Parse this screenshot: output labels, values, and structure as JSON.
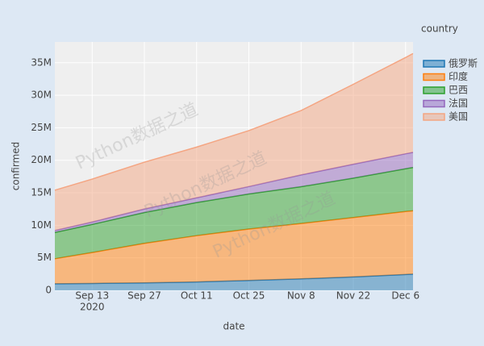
{
  "chart_data": {
    "type": "area",
    "stacked": true,
    "x_label": "date",
    "y_label": "confirmed",
    "legend_title": "country",
    "legend_position": "right",
    "watermark": "Python数据之道",
    "xtick_year": "2020",
    "grid": true,
    "x": [
      "2020-09-03",
      "2020-09-13",
      "2020-09-27",
      "2020-10-11",
      "2020-10-25",
      "2020-11-08",
      "2020-11-22",
      "2020-12-06",
      "2020-12-08"
    ],
    "series": [
      {
        "name": "俄罗斯",
        "color": "#1f77b4",
        "values": [
          1010000,
          1060000,
          1150000,
          1290000,
          1520000,
          1770000,
          2060000,
          2440000,
          2490000
        ]
      },
      {
        "name": "印度",
        "color": "#ff7f0e",
        "values": [
          3850000,
          4750000,
          6070000,
          7120000,
          7910000,
          8510000,
          9140000,
          9680000,
          9740000
        ]
      },
      {
        "name": "巴西",
        "color": "#2ca02c",
        "values": [
          4040000,
          4330000,
          4750000,
          5090000,
          5390000,
          5660000,
          6050000,
          6580000,
          6670000
        ]
      },
      {
        "name": "法国",
        "color": "#9467bd",
        "values": [
          300000,
          370000,
          540000,
          730000,
          1140000,
          1810000,
          2140000,
          2300000,
          2320000
        ]
      },
      {
        "name": "美国",
        "color": "#f4a582",
        "values": [
          6200000,
          6600000,
          7200000,
          7800000,
          8600000,
          9900000,
          12300000,
          14800000,
          15200000
        ]
      }
    ],
    "xlim": [
      "2020-09-03",
      "2020-12-08"
    ],
    "xticks": [
      {
        "value": "2020-09-13",
        "label": "Sep 13"
      },
      {
        "value": "2020-09-27",
        "label": "Sep 27"
      },
      {
        "value": "2020-10-11",
        "label": "Oct 11"
      },
      {
        "value": "2020-10-25",
        "label": "Oct 25"
      },
      {
        "value": "2020-11-08",
        "label": "Nov 8"
      },
      {
        "value": "2020-11-22",
        "label": "Nov 22"
      },
      {
        "value": "2020-12-06",
        "label": "Dec 6"
      }
    ],
    "ylim": [
      0,
      38200000
    ],
    "yticks": [
      0,
      {
        "value": 5000000,
        "label": "5M"
      },
      {
        "value": 10000000,
        "label": "10M"
      },
      {
        "value": 15000000,
        "label": "15M"
      },
      {
        "value": 20000000,
        "label": "20M"
      },
      {
        "value": 25000000,
        "label": "25M"
      },
      {
        "value": 30000000,
        "label": "30M"
      },
      {
        "value": 35000000,
        "label": "35M"
      }
    ]
  }
}
